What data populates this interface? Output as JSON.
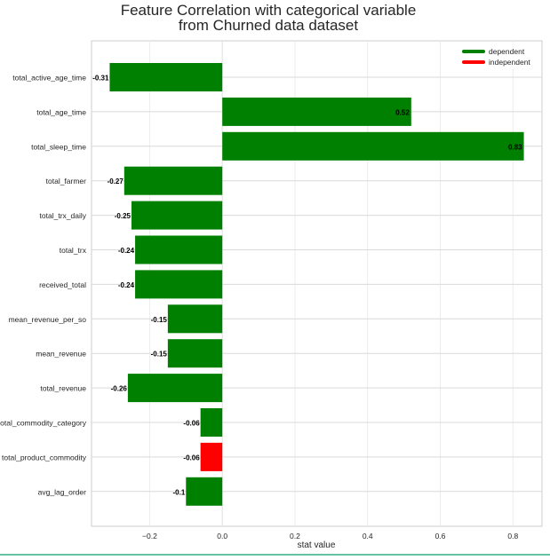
{
  "chart_data": {
    "type": "bar",
    "orientation": "horizontal",
    "title": "Feature Correlation with categorical variable",
    "subtitle": "from Churned data dataset",
    "xlabel": "stat value",
    "ylabel": "",
    "xlim": [
      -0.36,
      0.88
    ],
    "xticks": [
      -0.2,
      0.0,
      0.2,
      0.4,
      0.6,
      0.8
    ],
    "xtick_labels": [
      "−0.2",
      "0.0",
      "0.2",
      "0.4",
      "0.6",
      "0.8"
    ],
    "grid": true,
    "legend_position": "top-right",
    "legend": [
      {
        "label": "dependent",
        "color": "#008000"
      },
      {
        "label": "independent",
        "color": "#ff0000"
      }
    ],
    "categories": [
      "total_active_age_time",
      "total_age_time",
      "total_sleep_time",
      "total_farmer",
      "total_trx_daily",
      "total_trx",
      "received_total",
      "mean_revenue_per_so",
      "mean_revenue",
      "total_revenue",
      "total_commodity_category",
      "total_product_commodity",
      "avg_lag_order"
    ],
    "values": [
      -0.31,
      0.52,
      0.83,
      -0.27,
      -0.25,
      -0.24,
      -0.24,
      -0.15,
      -0.15,
      -0.26,
      -0.06,
      -0.06,
      -0.1
    ],
    "value_labels": [
      "-0.31",
      "0.52",
      "0.83",
      "-0.27",
      "-0.25",
      "-0.24",
      "-0.24",
      "-0.15",
      "-0.15",
      "-0.26",
      "-0.06",
      "-0.06",
      "-0.1"
    ],
    "groups": [
      "dependent",
      "dependent",
      "dependent",
      "dependent",
      "dependent",
      "dependent",
      "dependent",
      "dependent",
      "dependent",
      "dependent",
      "dependent",
      "independent",
      "dependent"
    ]
  }
}
